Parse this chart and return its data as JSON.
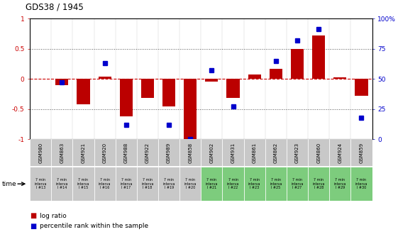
{
  "title": "GDS38 / 1945",
  "samples": [
    "GSM980",
    "GSM863",
    "GSM921",
    "GSM920",
    "GSM988",
    "GSM922",
    "GSM989",
    "GSM858",
    "GSM902",
    "GSM931",
    "GSM861",
    "GSM862",
    "GSM923",
    "GSM860",
    "GSM924",
    "GSM859"
  ],
  "log_ratio": [
    0.0,
    -0.1,
    -0.42,
    0.04,
    -0.62,
    -0.32,
    -0.46,
    -1.0,
    -0.04,
    -0.32,
    0.07,
    0.17,
    0.5,
    0.72,
    0.02,
    -0.28
  ],
  "percentile": [
    null,
    0.47,
    null,
    0.63,
    0.12,
    null,
    0.12,
    0.0,
    0.57,
    0.27,
    null,
    0.65,
    0.82,
    0.91,
    null,
    0.18
  ],
  "time_labels": [
    "7 min\ninterva\nl #13",
    "7 min\ninterva\nl #14",
    "7 min\ninterva\nl #15",
    "7 min\ninterva\nl #16",
    "7 min\ninterva\nl #17",
    "7 min\ninterva\nl #18",
    "7 min\ninterva\nl #19",
    "7 min\ninterva\nl #20",
    "7 min\ninterva\nl #21",
    "7 min\ninterva\nl #22",
    "7 min\ninterva\nl #23",
    "7 min\ninterva\nl #25",
    "7 min\ninterva\nl #27",
    "7 min\ninterva\nl #28",
    "7 min\ninterva\nl #29",
    "7 min\ninterva\nl #30"
  ],
  "bar_color": "#BB0000",
  "dot_color": "#0000CC",
  "zero_line_color": "#CC0000",
  "left_ylim": [
    -1.0,
    1.0
  ],
  "right_ylim": [
    0,
    100
  ],
  "left_yticks": [
    -1.0,
    -0.5,
    0.0,
    0.5,
    1.0
  ],
  "right_yticks": [
    0,
    25,
    50,
    75,
    100
  ],
  "right_yticklabels": [
    "0",
    "25",
    "50",
    "75",
    "100%"
  ],
  "col_bg_grey": "#c8c8c8",
  "col_bg_green": "#7dcc7d",
  "n_grey": 8,
  "n_green": 8
}
